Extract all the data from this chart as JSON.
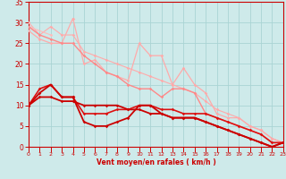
{
  "background_color": "#ceeaea",
  "grid_color": "#aad4d4",
  "xlabel": "Vent moyen/en rafales ( km/h )",
  "xlabel_color": "#cc0000",
  "tick_color": "#cc0000",
  "xmin": 0,
  "xmax": 23,
  "ymin": 0,
  "ymax": 35,
  "yticks": [
    0,
    5,
    10,
    15,
    20,
    25,
    30,
    35
  ],
  "xticks": [
    0,
    1,
    2,
    3,
    4,
    5,
    6,
    7,
    8,
    9,
    10,
    11,
    12,
    13,
    14,
    15,
    16,
    17,
    18,
    19,
    20,
    21,
    22,
    23
  ],
  "lines": [
    {
      "x": [
        0,
        1,
        2,
        3,
        4,
        5,
        6,
        7,
        8,
        9,
        10,
        11,
        12,
        13,
        14,
        15,
        16,
        17,
        18,
        19,
        20,
        21,
        22,
        23
      ],
      "y": [
        30,
        27,
        29,
        27,
        27,
        23,
        22,
        21,
        20,
        19,
        18,
        17,
        16,
        15,
        14,
        13,
        11,
        9,
        8,
        7,
        5,
        4,
        2,
        1
      ],
      "color": "#ffaaaa",
      "lw": 0.8,
      "marker": "D",
      "ms": 1.8
    },
    {
      "x": [
        0,
        1,
        2,
        3,
        4,
        5,
        6,
        7,
        8,
        9,
        10,
        11,
        12,
        13,
        14,
        15,
        16,
        17,
        18,
        19,
        20,
        21,
        22,
        23
      ],
      "y": [
        29,
        null,
        27,
        null,
        null,
        null,
        null,
        null,
        null,
        null,
        null,
        null,
        null,
        null,
        null,
        null,
        null,
        null,
        null,
        null,
        null,
        null,
        null,
        null
      ],
      "color": "#ffbbbb",
      "lw": 0.8,
      "marker": "D",
      "ms": 1.8
    },
    {
      "x": [
        0,
        1,
        2,
        3,
        4,
        5,
        6,
        7,
        8,
        9,
        10,
        11,
        12,
        13,
        14,
        15,
        16,
        17,
        18,
        19,
        20,
        21,
        22,
        23
      ],
      "y": [
        28,
        26,
        25,
        25,
        31,
        20,
        21,
        18,
        17,
        16,
        25,
        22,
        22,
        15,
        19,
        15,
        13,
        8,
        7,
        7,
        5,
        4,
        2,
        1
      ],
      "color": "#ffaaaa",
      "lw": 0.9,
      "marker": "D",
      "ms": 1.8
    },
    {
      "x": [
        0,
        1,
        2,
        3,
        4,
        5,
        6,
        7,
        8,
        9,
        10,
        11,
        12,
        13,
        14,
        15,
        16,
        17,
        18,
        19,
        20,
        21,
        22,
        23
      ],
      "y": [
        29,
        27,
        26,
        25,
        25,
        22,
        20,
        18,
        17,
        15,
        14,
        14,
        12,
        14,
        14,
        13,
        8,
        7,
        6,
        5,
        4,
        3,
        1,
        1
      ],
      "color": "#ff8888",
      "lw": 1.0,
      "marker": "D",
      "ms": 1.8
    },
    {
      "x": [
        0,
        1,
        2,
        3,
        4,
        5,
        6,
        7,
        8,
        9,
        10,
        11,
        12,
        13,
        14,
        15,
        16,
        17,
        18,
        19,
        20,
        21,
        22,
        23
      ],
      "y": [
        10,
        14,
        15,
        12,
        12,
        8,
        8,
        8,
        9,
        9,
        10,
        10,
        9,
        9,
        8,
        8,
        8,
        7,
        6,
        5,
        4,
        3,
        1,
        1
      ],
      "color": "#dd1111",
      "lw": 1.2,
      "marker": "D",
      "ms": 1.8
    },
    {
      "x": [
        0,
        1,
        2,
        3,
        4,
        5,
        6,
        7,
        8,
        9,
        10,
        11,
        12,
        13,
        14,
        15,
        16,
        17,
        18,
        19,
        20,
        21,
        22,
        23
      ],
      "y": [
        10,
        13,
        15,
        12,
        12,
        6,
        5,
        5,
        6,
        7,
        10,
        10,
        8,
        7,
        7,
        7,
        6,
        5,
        4,
        3,
        2,
        1,
        0,
        1
      ],
      "color": "#cc0000",
      "lw": 1.3,
      "marker": "D",
      "ms": 1.8
    },
    {
      "x": [
        0,
        1,
        2,
        3,
        4,
        5,
        6,
        7,
        8,
        9,
        10,
        11,
        12,
        13,
        14,
        15,
        16,
        17,
        18,
        19,
        20,
        21,
        22,
        23
      ],
      "y": [
        10,
        12,
        12,
        11,
        11,
        10,
        10,
        10,
        10,
        9,
        9,
        8,
        8,
        7,
        7,
        7,
        6,
        5,
        4,
        3,
        2,
        1,
        0,
        1
      ],
      "color": "#cc0000",
      "lw": 1.3,
      "marker": "D",
      "ms": 1.8
    }
  ]
}
